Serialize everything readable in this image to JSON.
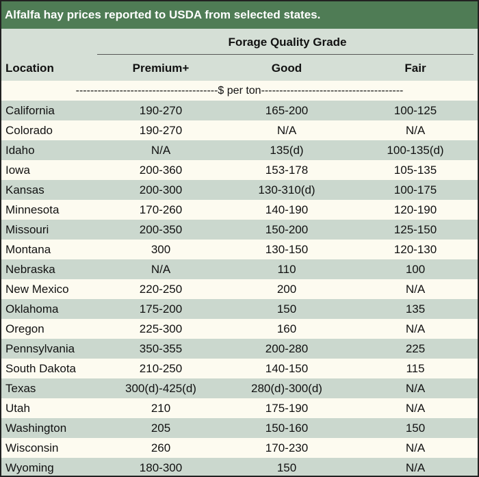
{
  "title": "Alfalfa hay prices reported to USDA from selected states.",
  "table": {
    "group_label": "Forage Quality Grade",
    "columns": [
      "Location",
      "Premium+",
      "Good",
      "Fair"
    ],
    "units": "---------------------------------------$ per ton---------------------------------------",
    "rows": [
      [
        "California",
        "190-270",
        "165-200",
        "100-125"
      ],
      [
        "Colorado",
        "190-270",
        "N/A",
        "N/A"
      ],
      [
        "Idaho",
        "N/A",
        "135(d)",
        "100-135(d)"
      ],
      [
        "Iowa",
        "200-360",
        "153-178",
        "105-135"
      ],
      [
        "Kansas",
        "200-300",
        "130-310(d)",
        "100-175"
      ],
      [
        "Minnesota",
        "170-260",
        "140-190",
        "120-190"
      ],
      [
        "Missouri",
        "200-350",
        "150-200",
        "125-150"
      ],
      [
        "Montana",
        "300",
        "130-150",
        "120-130"
      ],
      [
        "Nebraska",
        "N/A",
        "110",
        "100"
      ],
      [
        "New Mexico",
        "220-250",
        "200",
        "N/A"
      ],
      [
        "Oklahoma",
        "175-200",
        "150",
        "135"
      ],
      [
        "Oregon",
        "225-300",
        "160",
        "N/A"
      ],
      [
        "Pennsylvania",
        "350-355",
        "200-280",
        "225"
      ],
      [
        "South Dakota",
        "210-250",
        "140-150",
        "115"
      ],
      [
        "Texas",
        "300(d)-425(d)",
        "280(d)-300(d)",
        "N/A"
      ],
      [
        "Utah",
        "210",
        "175-190",
        "N/A"
      ],
      [
        "Washington",
        "205",
        "150-160",
        "150"
      ],
      [
        "Wisconsin",
        "260",
        "170-230",
        "N/A"
      ],
      [
        "Wyoming",
        "180-300",
        "150",
        "N/A"
      ]
    ]
  }
}
